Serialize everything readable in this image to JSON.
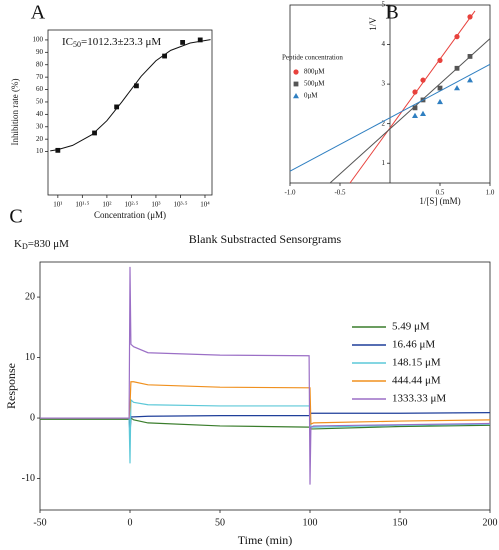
{
  "chart_data": [
    {
      "type": "scatter",
      "panel_label": "A",
      "x_label": "Concentration (μM)",
      "y_label": "Inhibition rate (%)",
      "annotation": [
        "IC",
        "50",
        "=1012.3±23.3 μM"
      ],
      "log_x": true,
      "xlim": [
        6.3,
        13900
      ],
      "xticks": [
        {
          "value": 10,
          "label": "10¹"
        },
        {
          "value": 31.6,
          "label": "10¹·⁵"
        },
        {
          "value": 100,
          "label": "10²"
        },
        {
          "value": 316,
          "label": "10²·⁵"
        },
        {
          "value": 1000,
          "label": "10³"
        },
        {
          "value": 3162,
          "label": "10³·⁵"
        },
        {
          "value": 10000,
          "label": "10⁴"
        }
      ],
      "ylim": [
        -25,
        108
      ],
      "yticks": [
        10,
        20,
        30,
        40,
        50,
        60,
        70,
        80,
        90,
        100
      ],
      "series": [
        {
          "color": "#111111",
          "marker": "square",
          "x": [
            10,
            56,
            158,
            400,
            1500,
            3500,
            8000
          ],
          "values": [
            11,
            25,
            46,
            63,
            87,
            98,
            100
          ]
        },
        {
          "color": "#111111",
          "line": true,
          "x": [
            7,
            10,
            20,
            50,
            100,
            200,
            500,
            1000,
            2000,
            5000,
            13000
          ],
          "values": [
            10.6,
            11.6,
            15.0,
            23.7,
            34.9,
            49.8,
            70.7,
            83.2,
            91.6,
            97.5,
            100.2
          ]
        }
      ]
    },
    {
      "type": "scatter",
      "panel_label": "B",
      "x_label": "1/[S] (mM)",
      "y_label": "1/V",
      "legend_title": "Peptide concentration",
      "axes_cross_at_zero": true,
      "xlim": [
        -1,
        1
      ],
      "xticks": [
        {
          "value": -1,
          "label": "-1.0"
        },
        -0.5,
        0.5,
        {
          "value": 1,
          "label": "1.0"
        }
      ],
      "ylim": [
        0.5,
        5
      ],
      "yticks": [
        1,
        2,
        3,
        4,
        5
      ],
      "series": [
        {
          "name": "800μM",
          "color": "#e8413c",
          "marker": "circle",
          "x": [
            0.25,
            0.33,
            0.5,
            0.67,
            0.8
          ],
          "values": [
            2.8,
            3.1,
            3.6,
            4.2,
            4.7
          ],
          "fit": {
            "x": [
              -0.4,
              0.85
            ],
            "values": [
              0.5,
              4.85
            ]
          }
        },
        {
          "name": "500μM",
          "color": "#555555",
          "marker": "square",
          "x": [
            0.25,
            0.33,
            0.5,
            0.67,
            0.8
          ],
          "values": [
            2.4,
            2.6,
            2.9,
            3.4,
            3.7
          ],
          "fit": {
            "x": [
              -0.6,
              1.0
            ],
            "values": [
              0.5,
              4.15
            ]
          }
        },
        {
          "name": "0μM",
          "color": "#2f7fc1",
          "marker": "triangle",
          "x": [
            0.25,
            0.33,
            0.5,
            0.67,
            0.8
          ],
          "values": [
            2.2,
            2.25,
            2.55,
            2.9,
            3.1
          ],
          "fit": {
            "x": [
              -1.0,
              1.0
            ],
            "values": [
              0.8,
              3.5
            ]
          }
        }
      ]
    },
    {
      "type": "line",
      "panel_label": "C",
      "title": "Blank Substracted Sensorgrams",
      "x_label": "Time (min)",
      "y_label": "Response",
      "annotation": [
        "K",
        "D",
        "=830 μM"
      ],
      "x": [
        -50,
        -0.5,
        0,
        0.5,
        2,
        10,
        50,
        99.5,
        100,
        100.5,
        102,
        150,
        200
      ],
      "xlim": [
        -50,
        200
      ],
      "xticks": [
        -50,
        0,
        50,
        100,
        150,
        200
      ],
      "ylim": [
        -15.2,
        25.8
      ],
      "yticks": [
        -10,
        0,
        10,
        20
      ],
      "series": [
        {
          "name": "5.49 μM",
          "color": "#3a7d2c",
          "values": [
            -0.2,
            -0.2,
            -2,
            0,
            -0.3,
            -0.8,
            -1.3,
            -1.5,
            -1.5,
            -1.8,
            -1.8,
            -1.4,
            -1.2
          ]
        },
        {
          "name": "16.46 μM",
          "color": "#1f3f9a",
          "values": [
            0,
            0,
            -3,
            0.2,
            0.2,
            0.3,
            0.4,
            0.4,
            0.4,
            0.8,
            0.8,
            0.8,
            0.9
          ]
        },
        {
          "name": " 148.15 μM",
          "color": "#5cc8d8",
          "values": [
            0,
            0,
            -7.5,
            3.0,
            2.6,
            2.2,
            2.0,
            2.0,
            2.0,
            -1.5,
            -1.5,
            -1.2,
            -1.0
          ]
        },
        {
          "name": "444.44 μM",
          "color": "#f0901e",
          "values": [
            0,
            0,
            2,
            6,
            6.0,
            5.5,
            5.1,
            5.0,
            5.0,
            -1,
            -0.8,
            -0.5,
            -0.3
          ]
        },
        {
          "name": "1333.33 μM",
          "color": "#9b6fc6",
          "values": [
            0,
            0,
            25,
            12.2,
            11.8,
            10.8,
            10.4,
            10.3,
            -11,
            -1.5,
            -1.3,
            -1.1,
            -0.9
          ]
        }
      ]
    }
  ]
}
